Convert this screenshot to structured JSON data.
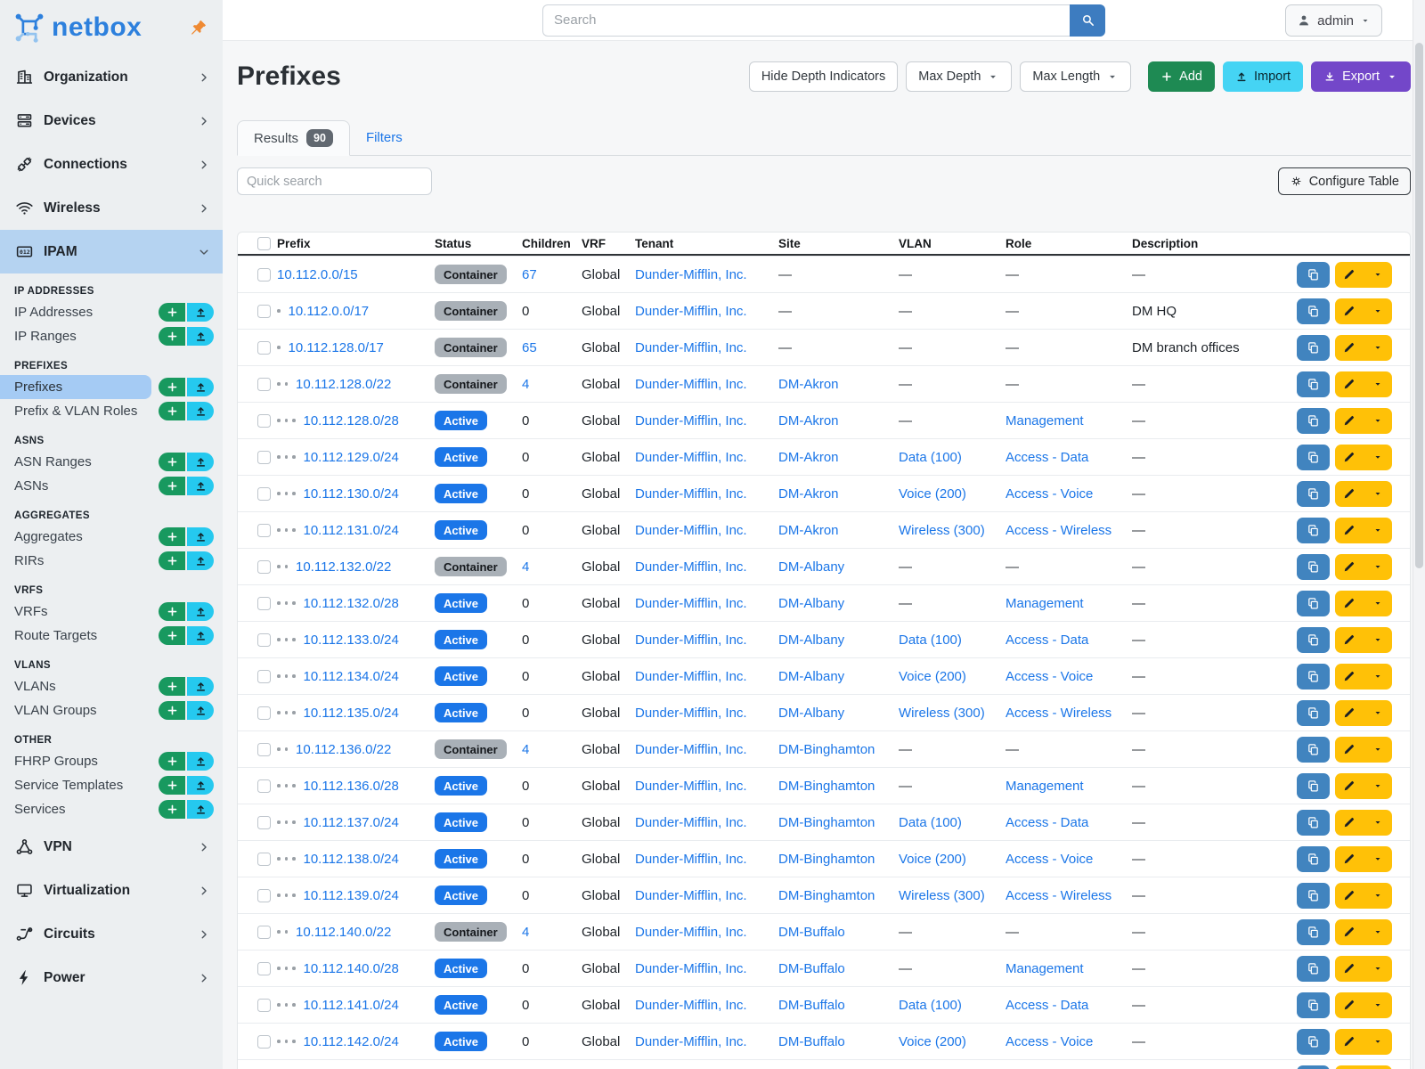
{
  "sidebar": {
    "logo_text": "netbox",
    "top_items": [
      {
        "label": "Organization",
        "icon": "building"
      },
      {
        "label": "Devices",
        "icon": "server"
      },
      {
        "label": "Connections",
        "icon": "plug"
      },
      {
        "label": "Wireless",
        "icon": "wifi"
      }
    ],
    "active_item": {
      "label": "IPAM",
      "icon": "counter"
    },
    "groups": [
      {
        "header": "IP ADDRESSES",
        "items": [
          {
            "label": "IP Addresses"
          },
          {
            "label": "IP Ranges"
          }
        ]
      },
      {
        "header": "PREFIXES",
        "items": [
          {
            "label": "Prefixes",
            "active": true
          },
          {
            "label": "Prefix & VLAN Roles"
          }
        ]
      },
      {
        "header": "ASNS",
        "items": [
          {
            "label": "ASN Ranges"
          },
          {
            "label": "ASNs"
          }
        ]
      },
      {
        "header": "AGGREGATES",
        "items": [
          {
            "label": "Aggregates"
          },
          {
            "label": "RIRs"
          }
        ]
      },
      {
        "header": "VRFS",
        "items": [
          {
            "label": "VRFs"
          },
          {
            "label": "Route Targets"
          }
        ]
      },
      {
        "header": "VLANS",
        "items": [
          {
            "label": "VLANs"
          },
          {
            "label": "VLAN Groups"
          }
        ]
      },
      {
        "header": "OTHER",
        "items": [
          {
            "label": "FHRP Groups"
          },
          {
            "label": "Service Templates"
          },
          {
            "label": "Services"
          }
        ]
      }
    ],
    "bottom_items": [
      {
        "label": "VPN",
        "icon": "vpn"
      },
      {
        "label": "Virtualization",
        "icon": "monitor"
      },
      {
        "label": "Circuits",
        "icon": "circuit"
      },
      {
        "label": "Power",
        "icon": "bolt"
      }
    ]
  },
  "topbar": {
    "search_placeholder": "Search",
    "user": "admin"
  },
  "page": {
    "title": "Prefixes",
    "toolbar": {
      "hide_depth": "Hide Depth Indicators",
      "max_depth": "Max Depth",
      "max_length": "Max Length",
      "add": "Add",
      "import": "Import",
      "export": "Export"
    },
    "tabs": {
      "results": "Results",
      "results_count": "90",
      "filters": "Filters"
    },
    "quick_search_placeholder": "Quick search",
    "configure_table": "Configure Table"
  },
  "table": {
    "headers": [
      "Prefix",
      "Status",
      "Children",
      "VRF",
      "Tenant",
      "Site",
      "VLAN",
      "Role",
      "Description"
    ],
    "rows": [
      {
        "prefix": "10.112.0.0/15",
        "depth": 0,
        "status": "Container",
        "children": "67",
        "vrf": "Global",
        "tenant": "Dunder-Mifflin, Inc.",
        "site": "—",
        "vlan": "—",
        "role": "—",
        "description": "—"
      },
      {
        "prefix": "10.112.0.0/17",
        "depth": 1,
        "status": "Container",
        "children": "0",
        "vrf": "Global",
        "tenant": "Dunder-Mifflin, Inc.",
        "site": "—",
        "vlan": "—",
        "role": "—",
        "description": "DM HQ"
      },
      {
        "prefix": "10.112.128.0/17",
        "depth": 1,
        "status": "Container",
        "children": "65",
        "vrf": "Global",
        "tenant": "Dunder-Mifflin, Inc.",
        "site": "—",
        "vlan": "—",
        "role": "—",
        "description": "DM branch offices"
      },
      {
        "prefix": "10.112.128.0/22",
        "depth": 2,
        "status": "Container",
        "children": "4",
        "vrf": "Global",
        "tenant": "Dunder-Mifflin, Inc.",
        "site": "DM-Akron",
        "vlan": "—",
        "role": "—",
        "description": "—"
      },
      {
        "prefix": "10.112.128.0/28",
        "depth": 3,
        "status": "Active",
        "children": "0",
        "vrf": "Global",
        "tenant": "Dunder-Mifflin, Inc.",
        "site": "DM-Akron",
        "vlan": "—",
        "role": "Management",
        "description": "—"
      },
      {
        "prefix": "10.112.129.0/24",
        "depth": 3,
        "status": "Active",
        "children": "0",
        "vrf": "Global",
        "tenant": "Dunder-Mifflin, Inc.",
        "site": "DM-Akron",
        "vlan": "Data (100)",
        "role": "Access - Data",
        "description": "—"
      },
      {
        "prefix": "10.112.130.0/24",
        "depth": 3,
        "status": "Active",
        "children": "0",
        "vrf": "Global",
        "tenant": "Dunder-Mifflin, Inc.",
        "site": "DM-Akron",
        "vlan": "Voice (200)",
        "role": "Access - Voice",
        "description": "—"
      },
      {
        "prefix": "10.112.131.0/24",
        "depth": 3,
        "status": "Active",
        "children": "0",
        "vrf": "Global",
        "tenant": "Dunder-Mifflin, Inc.",
        "site": "DM-Akron",
        "vlan": "Wireless (300)",
        "role": "Access - Wireless",
        "description": "—"
      },
      {
        "prefix": "10.112.132.0/22",
        "depth": 2,
        "status": "Container",
        "children": "4",
        "vrf": "Global",
        "tenant": "Dunder-Mifflin, Inc.",
        "site": "DM-Albany",
        "vlan": "—",
        "role": "—",
        "description": "—"
      },
      {
        "prefix": "10.112.132.0/28",
        "depth": 3,
        "status": "Active",
        "children": "0",
        "vrf": "Global",
        "tenant": "Dunder-Mifflin, Inc.",
        "site": "DM-Albany",
        "vlan": "—",
        "role": "Management",
        "description": "—"
      },
      {
        "prefix": "10.112.133.0/24",
        "depth": 3,
        "status": "Active",
        "children": "0",
        "vrf": "Global",
        "tenant": "Dunder-Mifflin, Inc.",
        "site": "DM-Albany",
        "vlan": "Data (100)",
        "role": "Access - Data",
        "description": "—"
      },
      {
        "prefix": "10.112.134.0/24",
        "depth": 3,
        "status": "Active",
        "children": "0",
        "vrf": "Global",
        "tenant": "Dunder-Mifflin, Inc.",
        "site": "DM-Albany",
        "vlan": "Voice (200)",
        "role": "Access - Voice",
        "description": "—"
      },
      {
        "prefix": "10.112.135.0/24",
        "depth": 3,
        "status": "Active",
        "children": "0",
        "vrf": "Global",
        "tenant": "Dunder-Mifflin, Inc.",
        "site": "DM-Albany",
        "vlan": "Wireless (300)",
        "role": "Access - Wireless",
        "description": "—"
      },
      {
        "prefix": "10.112.136.0/22",
        "depth": 2,
        "status": "Container",
        "children": "4",
        "vrf": "Global",
        "tenant": "Dunder-Mifflin, Inc.",
        "site": "DM-Binghamton",
        "vlan": "—",
        "role": "—",
        "description": "—"
      },
      {
        "prefix": "10.112.136.0/28",
        "depth": 3,
        "status": "Active",
        "children": "0",
        "vrf": "Global",
        "tenant": "Dunder-Mifflin, Inc.",
        "site": "DM-Binghamton",
        "vlan": "—",
        "role": "Management",
        "description": "—"
      },
      {
        "prefix": "10.112.137.0/24",
        "depth": 3,
        "status": "Active",
        "children": "0",
        "vrf": "Global",
        "tenant": "Dunder-Mifflin, Inc.",
        "site": "DM-Binghamton",
        "vlan": "Data (100)",
        "role": "Access - Data",
        "description": "—"
      },
      {
        "prefix": "10.112.138.0/24",
        "depth": 3,
        "status": "Active",
        "children": "0",
        "vrf": "Global",
        "tenant": "Dunder-Mifflin, Inc.",
        "site": "DM-Binghamton",
        "vlan": "Voice (200)",
        "role": "Access - Voice",
        "description": "—"
      },
      {
        "prefix": "10.112.139.0/24",
        "depth": 3,
        "status": "Active",
        "children": "0",
        "vrf": "Global",
        "tenant": "Dunder-Mifflin, Inc.",
        "site": "DM-Binghamton",
        "vlan": "Wireless (300)",
        "role": "Access - Wireless",
        "description": "—"
      },
      {
        "prefix": "10.112.140.0/22",
        "depth": 2,
        "status": "Container",
        "children": "4",
        "vrf": "Global",
        "tenant": "Dunder-Mifflin, Inc.",
        "site": "DM-Buffalo",
        "vlan": "—",
        "role": "—",
        "description": "—"
      },
      {
        "prefix": "10.112.140.0/28",
        "depth": 3,
        "status": "Active",
        "children": "0",
        "vrf": "Global",
        "tenant": "Dunder-Mifflin, Inc.",
        "site": "DM-Buffalo",
        "vlan": "—",
        "role": "Management",
        "description": "—"
      },
      {
        "prefix": "10.112.141.0/24",
        "depth": 3,
        "status": "Active",
        "children": "0",
        "vrf": "Global",
        "tenant": "Dunder-Mifflin, Inc.",
        "site": "DM-Buffalo",
        "vlan": "Data (100)",
        "role": "Access - Data",
        "description": "—"
      },
      {
        "prefix": "10.112.142.0/24",
        "depth": 3,
        "status": "Active",
        "children": "0",
        "vrf": "Global",
        "tenant": "Dunder-Mifflin, Inc.",
        "site": "DM-Buffalo",
        "vlan": "Voice (200)",
        "role": "Access - Voice",
        "description": "—"
      },
      {
        "partial": true
      }
    ]
  },
  "colors": {
    "link_blue": "#1b76e8",
    "active_badge_blue": "#1b76e8",
    "container_badge_gray": "#a9b0b7",
    "add_green": "#1e8a53",
    "import_cyan": "#45d4f4",
    "export_purple": "#7347c9",
    "action_edit_yellow": "#ffc107",
    "action_copy_blue": "#4184bf",
    "sidebar_quick_green": "#18995f",
    "sidebar_quick_cyan": "#25c9ef",
    "sidebar_active_blue": "#b5d3f1",
    "search_button_blue": "#3d7cc0",
    "pin_orange": "#ef8a33",
    "logo_blue": "#2d80dd"
  }
}
